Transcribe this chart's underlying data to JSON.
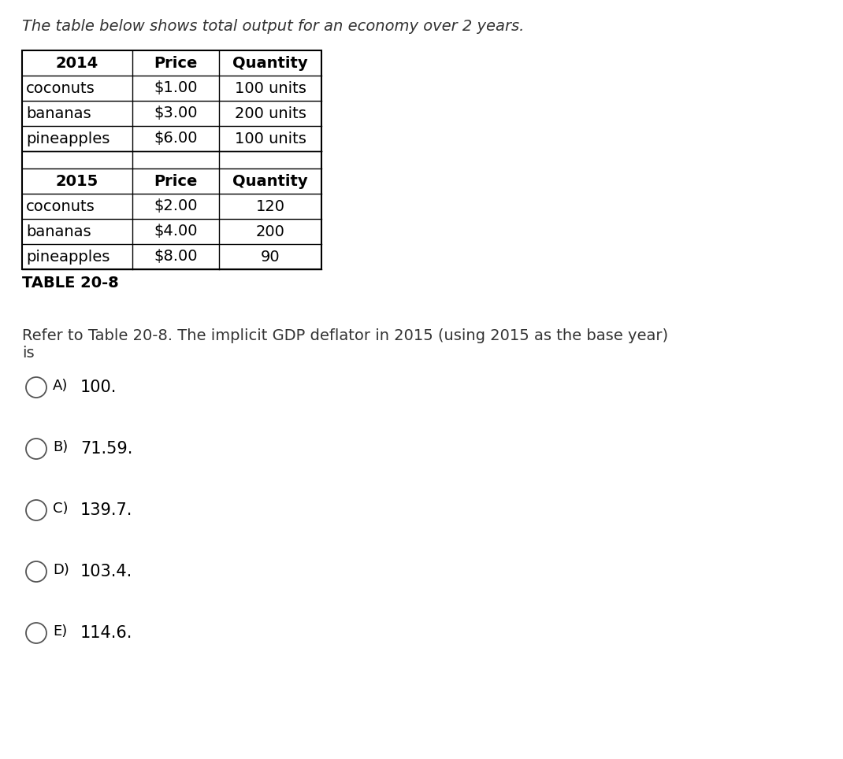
{
  "subtitle": "The table below shows total output for an economy over 2 years.",
  "table_caption": "TABLE 20-8",
  "year1": "2014",
  "year2": "2015",
  "col_headers": [
    "Price",
    "Quantity"
  ],
  "data_2014": [
    [
      "coconuts",
      "$1.00",
      "100 units"
    ],
    [
      "bananas",
      "$3.00",
      "200 units"
    ],
    [
      "pineapples",
      "$6.00",
      "100 units"
    ]
  ],
  "data_2015": [
    [
      "coconuts",
      "$2.00",
      "120"
    ],
    [
      "bananas",
      "$4.00",
      "200"
    ],
    [
      "pineapples",
      "$8.00",
      "90"
    ]
  ],
  "question_line1": "Refer to Table 20-8. The implicit GDP deflator in 2015 (using 2015 as the base year)",
  "question_line2": "is",
  "choices": [
    {
      "label": "A)",
      "text": "100."
    },
    {
      "label": "B)",
      "text": "71.59."
    },
    {
      "label": "C)",
      "text": "139.7."
    },
    {
      "label": "D)",
      "text": "103.4."
    },
    {
      "label": "E)",
      "text": "114.6."
    }
  ],
  "bg_color": "#ffffff",
  "text_color": "#333333",
  "bold_text_color": "#1a1a1a",
  "subtitle_fontsize": 14,
  "table_fontsize": 14,
  "caption_fontsize": 14,
  "question_fontsize": 14,
  "choice_fontsize": 14
}
